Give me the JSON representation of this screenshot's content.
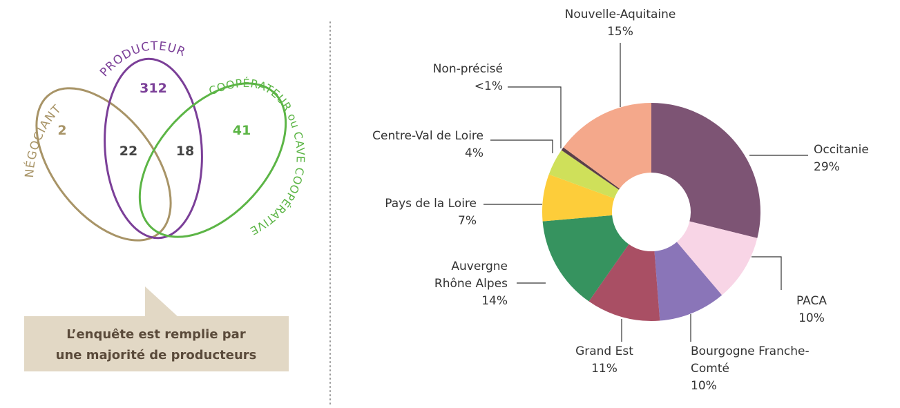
{
  "chart_data": [
    {
      "type": "venn",
      "sets": [
        "NÉGOCIANT",
        "PRODUCTEUR",
        "COOPÉRATEUR ou CAVE COOPÉRATIVE"
      ],
      "set_colors": [
        "#a89467",
        "#7b3f98",
        "#5cb546"
      ],
      "regions": [
        {
          "sets": [
            "NÉGOCIANT"
          ],
          "value": 2
        },
        {
          "sets": [
            "PRODUCTEUR"
          ],
          "value": 312
        },
        {
          "sets": [
            "COOPÉRATEUR ou CAVE COOPÉRATIVE"
          ],
          "value": 41
        },
        {
          "sets": [
            "NÉGOCIANT",
            "PRODUCTEUR"
          ],
          "value": 22
        },
        {
          "sets": [
            "PRODUCTEUR",
            "COOPÉRATEUR ou CAVE COOPÉRATIVE"
          ],
          "value": 18
        }
      ],
      "note": [
        "L’enquête est remplie par",
        "une majorité de producteurs"
      ]
    },
    {
      "type": "donut",
      "categories": [
        "Occitanie",
        "PACA",
        "Bourgogne Franche-Comté",
        "Grand Est",
        "Auvergne Rhône Alpes",
        "Pays de la Loire",
        "Centre-Val de Loire",
        "Non-précisé",
        "Nouvelle-Aquitaine"
      ],
      "values": [
        29,
        10,
        10,
        11,
        14,
        7,
        4,
        0.5,
        15
      ],
      "value_labels": [
        "29%",
        "10%",
        "10%",
        "11%",
        "14%",
        "7%",
        "4%",
        "<1%",
        "15%"
      ],
      "colors": [
        "#7d5474",
        "#f8d5e6",
        "#8a75b8",
        "#a94f64",
        "#36935f",
        "#fdcd3a",
        "#cfe05a",
        "#5a3f48",
        "#f4a88b"
      ]
    }
  ]
}
